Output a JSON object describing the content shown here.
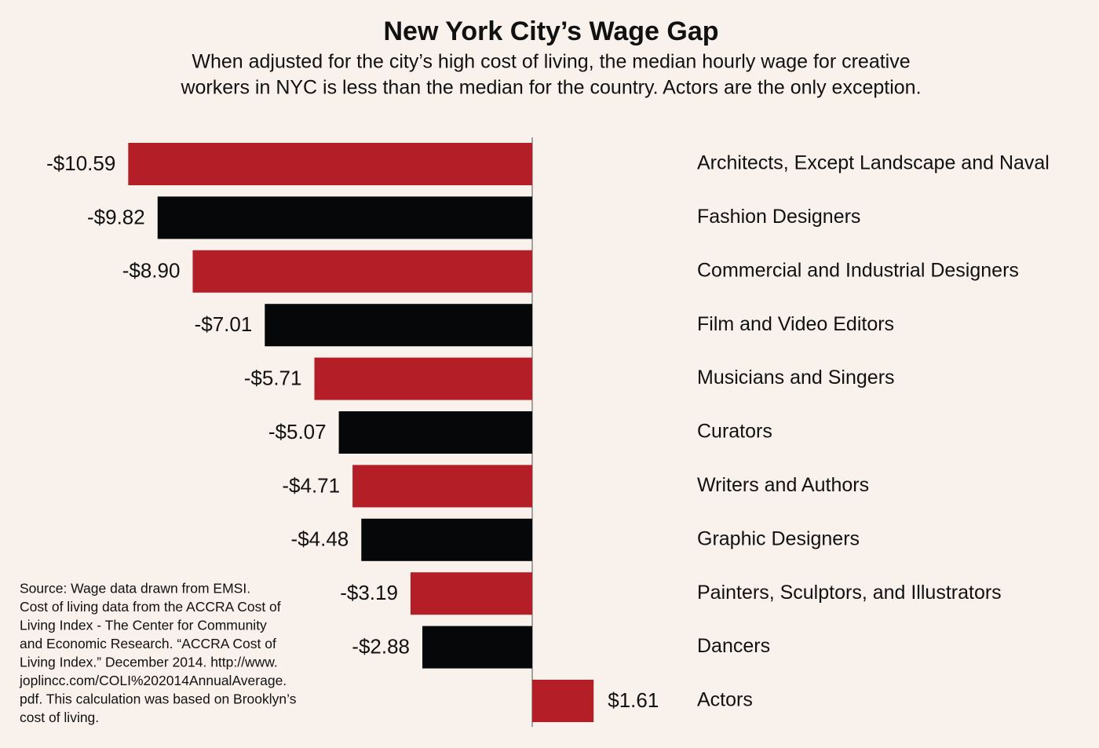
{
  "chart_data": {
    "type": "bar",
    "orientation": "horizontal",
    "title": "New York City’s Wage Gap",
    "subtitle": [
      "When adjusted for the city’s high cost of living, the median hourly wage for creative",
      "workers in NYC is less than the median for the country. Actors are the only exception."
    ],
    "categories": [
      "Architects, Except Landscape and Naval",
      "Fashion Designers",
      "Commercial and Industrial Designers",
      "Film and Video Editors",
      "Musicians and Singers",
      "Curators",
      "Writers and Authors",
      "Graphic Designers",
      "Painters, Sculptors, and Illustrators",
      "Dancers",
      "Actors"
    ],
    "values": [
      -10.59,
      -9.82,
      -8.9,
      -7.01,
      -5.71,
      -5.07,
      -4.71,
      -4.48,
      -3.19,
      -2.88,
      1.61
    ],
    "value_labels": [
      "-$10.59",
      "-$9.82",
      "-$8.90",
      "-$7.01",
      "-$5.71",
      "-$5.07",
      "-$4.71",
      "-$4.48",
      "-$3.19",
      "-$2.88",
      "$1.61"
    ],
    "colors": [
      "#b41f27",
      "#050709",
      "#b41f27",
      "#050709",
      "#b41f27",
      "#050709",
      "#b41f27",
      "#050709",
      "#b41f27",
      "#050709",
      "#b41f27"
    ],
    "source": [
      "Source: Wage data drawn from EMSI.",
      "Cost of living data from the ACCRA Cost of",
      "Living Index - The Center for Community",
      "and Economic Research. “ACCRA Cost of",
      "Living Index.” December 2014.  http://www.",
      "joplincc.com/COLI%202014AnnualAverage.",
      "pdf. This calculation was based on Brooklyn’s",
      "cost of living."
    ]
  }
}
